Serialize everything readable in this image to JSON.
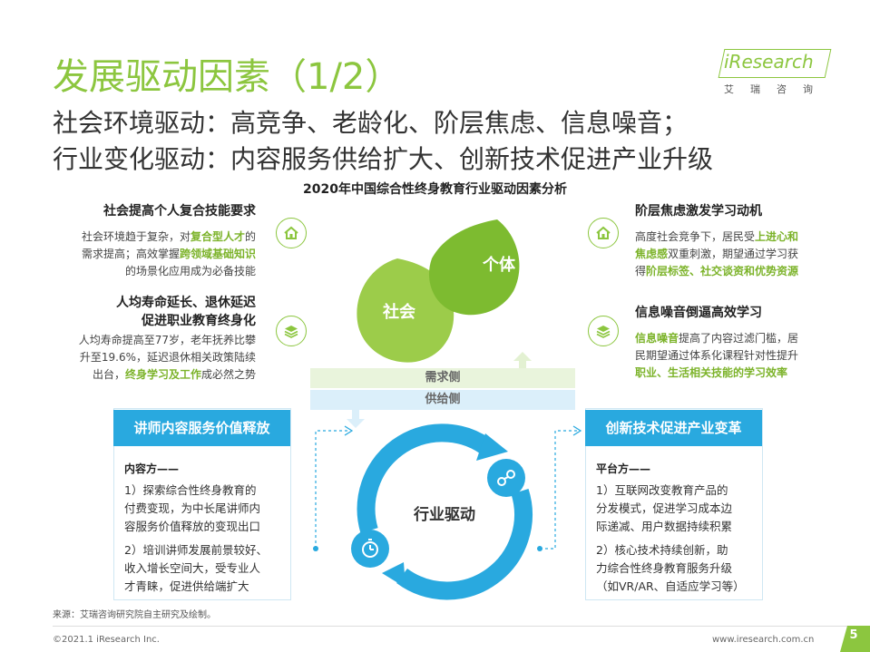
{
  "header": {
    "title": "发展驱动因素（1/2）",
    "subtitle_line1": "社会环境驱动：高竞争、老龄化、阶层焦虑、信息噪音；",
    "subtitle_line2": "行业变化驱动：内容服务供给扩大、创新技术促进产业升级",
    "logo_text": "iResearch",
    "logo_cn": "艾瑞咨询"
  },
  "chart_title": "2020年中国综合性终身教育行业驱动因素分析",
  "left_top": {
    "heading": "社会提高个人复合技能要求",
    "line1_a": "社会环境趋于复杂，对",
    "line1_hl": "复合型人才",
    "line1_b": "的",
    "line2_a": "需求提高；高效掌握",
    "line2_hl": "跨领域基础知识",
    "line3": "的场景化应用成为必备技能"
  },
  "left_mid": {
    "heading1": "人均寿命延长、退休延迟",
    "heading2": "促进职业教育终身化",
    "line1": "人均寿命提高至77岁，老年抚养比攀",
    "line2": "升至19.6%，延迟退休相关政策陆续",
    "line3_a": "出台，",
    "line3_hl": "终身学习及工作",
    "line3_b": "成必然之势"
  },
  "right_top": {
    "heading": "阶层焦虑激发学习动机",
    "line1_a": "高度社会竞争下，居民受",
    "line1_hl": "上进心和",
    "line2_hl": "焦虑感",
    "line2_b": "双重刺激，期望通过学习获",
    "line3_a": "得",
    "line3_hl": "阶层标签、社交谈资和优势资源"
  },
  "right_mid": {
    "heading": "信息噪音倒逼高效学习",
    "line1_hl": "信息噪音",
    "line1_b": "提高了内容过滤门槛，居",
    "line2": "民期望通过体系化课程针对性提升",
    "line3_hl": "职业、生活相关技能的学习效率"
  },
  "petals": {
    "society": "社会",
    "individual": "个体"
  },
  "stripes": {
    "demand": "需求侧",
    "supply": "供给侧"
  },
  "cycle": {
    "center_label": "行业驱动"
  },
  "left_box": {
    "head": "讲师内容服务价值释放",
    "label": "内容方——",
    "p1_l1": "1）探索综合性终身教育的",
    "p1_l2": "付费变现，为中长尾讲师内",
    "p1_l3": "容服务价值释放的变现出口",
    "p2_l1": "2）培训讲师发展前景较好、",
    "p2_l2": "收入增长空间大，受专业人",
    "p2_l3": "才青睐，促进供给端扩大"
  },
  "right_box": {
    "head": "创新技术促进产业变革",
    "label": "平台方——",
    "p1_l1": "1）互联网改变教育产品的",
    "p1_l2": "分发模式，促进学习成本边",
    "p1_l3": "际递减、用户数据持续积累",
    "p2_l1": "2）核心技术持续创新，助",
    "p2_l2": "力综合性终身教育服务升级",
    "p2_l3": "（如VR/AR、自适应学习等）"
  },
  "footer": {
    "source": "来源：艾瑞咨询研究院自主研究及绘制。",
    "copyright": "©2021.1 iResearch Inc.",
    "website": "www.iresearch.com.cn",
    "page": "5"
  },
  "colors": {
    "green": "#8cc63f",
    "blue": "#29a9df",
    "highlight": "#7cb32a"
  },
  "icons": [
    "home-icon",
    "layers-icon",
    "link-icon",
    "clock-icon"
  ]
}
